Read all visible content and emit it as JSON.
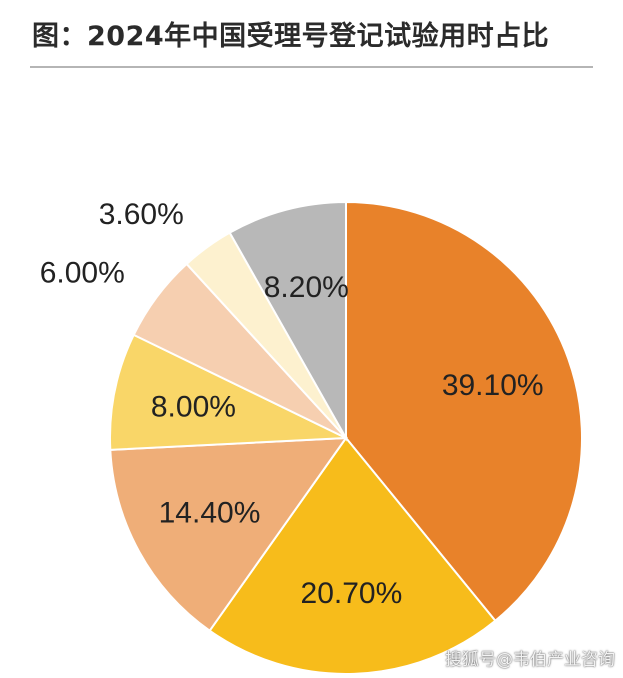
{
  "title": "图：2024年中国受理号登记试验用时占比",
  "watermark": "搜狐号@韦伯产业咨询",
  "chart_data": {
    "type": "pie",
    "title": "图：2024年中国受理号登记试验用时占比",
    "start_angle": "12 o'clock",
    "direction": "clockwise",
    "slices": [
      {
        "value": 39.1,
        "label": "39.10%",
        "color": "#E8822A",
        "label_position": "inside"
      },
      {
        "value": 20.7,
        "label": "20.70%",
        "color": "#F7BC1B",
        "label_position": "inside"
      },
      {
        "value": 14.4,
        "label": "14.40%",
        "color": "#EFAE78",
        "label_position": "inside"
      },
      {
        "value": 8.0,
        "label": "8.00%",
        "color": "#F9D668",
        "label_position": "inside"
      },
      {
        "value": 6.0,
        "label": "6.00%",
        "color": "#F6CFB0",
        "label_position": "outside"
      },
      {
        "value": 3.6,
        "label": "3.60%",
        "color": "#FDF1CF",
        "label_position": "outside"
      },
      {
        "value": 8.2,
        "label": "8.20%",
        "color": "#B8B8B8",
        "label_position": "inside"
      }
    ]
  }
}
